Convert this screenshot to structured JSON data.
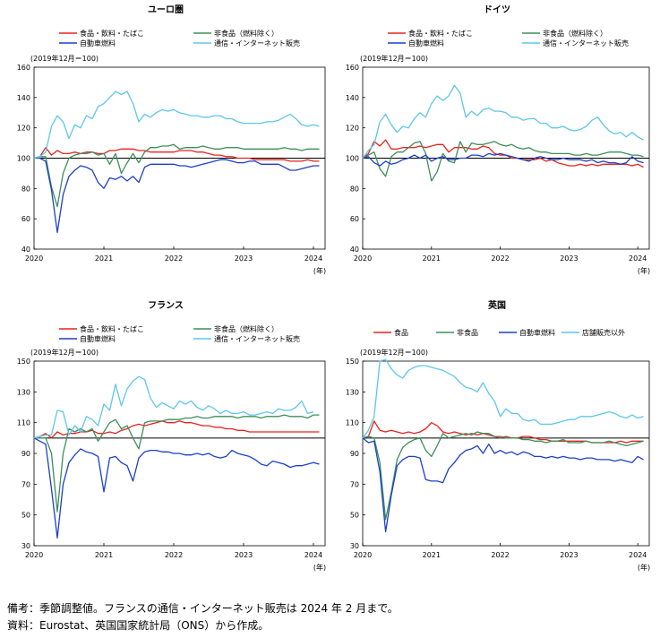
{
  "unit_note": "(2019年12月＝100)",
  "year_suffix": "(年)",
  "notes": {
    "line1": "備考：季節調整値。フランスの通信・インターネット販売は 2024 年 2 月まで。",
    "line2": "資料：Eurostat、英国国家統計局（ONS）から作成。"
  },
  "chart_data": [
    {
      "type": "line",
      "title": "ユーロ圏",
      "ylabel": "(2019年12月＝100)",
      "xlabel": "(年)",
      "ylim": [
        40,
        160
      ],
      "yticks": [
        40,
        60,
        80,
        100,
        120,
        140,
        160
      ],
      "xticks": [
        {
          "label": "2020",
          "x": 0
        },
        {
          "label": "2021",
          "x": 12
        },
        {
          "label": "2022",
          "x": 24
        },
        {
          "label": "2023",
          "x": 36
        },
        {
          "label": "2024",
          "x": 48
        }
      ],
      "xlim": [
        0,
        50
      ],
      "reference": 100,
      "legend_columns": 2,
      "series": [
        {
          "name": "食品・飲料・たばこ",
          "color": "#e8231e",
          "values": [
            100,
            101,
            107,
            102,
            105,
            103,
            103,
            104,
            103,
            104,
            104,
            103,
            103,
            105,
            105,
            106,
            106,
            106,
            105,
            105,
            104,
            104,
            104,
            104,
            104,
            105,
            105,
            105,
            104,
            104,
            103,
            102,
            102,
            101,
            101,
            100,
            100,
            100,
            99,
            99,
            99,
            99,
            99,
            99,
            98,
            98,
            98,
            99,
            98,
            98
          ]
        },
        {
          "name": "非食品（燃料除く）",
          "color": "#3d8f5a",
          "values": [
            100,
            101,
            101,
            81,
            68,
            90,
            100,
            102,
            103,
            103,
            104,
            102,
            103,
            96,
            103,
            90,
            97,
            103,
            97,
            104,
            107,
            107,
            108,
            108,
            109,
            106,
            107,
            107,
            107,
            108,
            107,
            106,
            106,
            107,
            107,
            107,
            106,
            106,
            106,
            106,
            106,
            106,
            106,
            107,
            106,
            106,
            105,
            106,
            106,
            106
          ]
        },
        {
          "name": "自動車燃料",
          "color": "#1d3fc9",
          "values": [
            100,
            100,
            98,
            79,
            51,
            76,
            88,
            92,
            95,
            94,
            92,
            84,
            80,
            87,
            86,
            88,
            85,
            88,
            84,
            94,
            96,
            96,
            96,
            96,
            96,
            95,
            95,
            94,
            95,
            96,
            97,
            98,
            99,
            99,
            98,
            97,
            97,
            98,
            98,
            96,
            96,
            96,
            96,
            94,
            92,
            92,
            93,
            94,
            95,
            95
          ]
        },
        {
          "name": "通信・インターネット販売",
          "color": "#5ec6ec",
          "values": [
            100,
            101,
            104,
            121,
            128,
            124,
            113,
            122,
            120,
            128,
            126,
            134,
            136,
            140,
            144,
            142,
            144,
            136,
            124,
            129,
            127,
            130,
            132,
            131,
            132,
            130,
            129,
            128,
            128,
            127,
            127,
            128,
            128,
            126,
            126,
            124,
            123,
            123,
            123,
            123,
            124,
            124,
            125,
            127,
            129,
            126,
            122,
            121,
            122,
            121
          ]
        }
      ]
    },
    {
      "type": "line",
      "title": "ドイツ",
      "ylabel": "(2019年12月＝100)",
      "xlabel": "(年)",
      "ylim": [
        40,
        160
      ],
      "yticks": [
        40,
        60,
        80,
        100,
        120,
        140,
        160
      ],
      "xticks": [
        {
          "label": "2020",
          "x": 0
        },
        {
          "label": "2021",
          "x": 12
        },
        {
          "label": "2022",
          "x": 24
        },
        {
          "label": "2023",
          "x": 36
        },
        {
          "label": "2024",
          "x": 48
        }
      ],
      "xlim": [
        0,
        50
      ],
      "reference": 100,
      "legend_columns": 2,
      "series": [
        {
          "name": "食品・飲料・たばこ",
          "color": "#e8231e",
          "values": [
            100,
            103,
            111,
            108,
            112,
            106,
            106,
            107,
            107,
            107,
            108,
            107,
            108,
            109,
            109,
            104,
            107,
            107,
            107,
            106,
            106,
            108,
            107,
            103,
            102,
            102,
            100,
            100,
            99,
            99,
            99,
            100,
            98,
            99,
            97,
            96,
            95,
            95,
            96,
            95,
            96,
            95,
            96,
            96,
            96,
            96,
            96,
            95,
            96,
            94
          ]
        },
        {
          "name": "非食品（燃料除く）",
          "color": "#3d8f5a",
          "values": [
            100,
            102,
            104,
            93,
            88,
            101,
            104,
            104,
            107,
            110,
            111,
            103,
            85,
            91,
            103,
            98,
            97,
            111,
            104,
            110,
            109,
            109,
            110,
            111,
            109,
            108,
            109,
            107,
            106,
            107,
            105,
            104,
            104,
            103,
            103,
            103,
            103,
            102,
            102,
            103,
            102,
            102,
            103,
            104,
            104,
            104,
            103,
            102,
            102,
            101
          ]
        },
        {
          "name": "自動車燃料",
          "color": "#1d3fc9",
          "values": [
            100,
            101,
            97,
            95,
            98,
            96,
            97,
            99,
            100,
            102,
            100,
            102,
            98,
            100,
            101,
            99,
            99,
            100,
            100,
            102,
            102,
            101,
            103,
            102,
            103,
            102,
            101,
            100,
            99,
            98,
            100,
            101,
            100,
            99,
            99,
            100,
            99,
            99,
            99,
            98,
            99,
            97,
            98,
            97,
            97,
            96,
            97,
            101,
            98,
            97
          ]
        },
        {
          "name": "通信・インターネット販売",
          "color": "#5ec6ec",
          "values": [
            100,
            105,
            109,
            124,
            129,
            122,
            117,
            121,
            120,
            126,
            130,
            127,
            136,
            141,
            138,
            141,
            148,
            143,
            127,
            131,
            128,
            132,
            133,
            131,
            131,
            130,
            127,
            127,
            125,
            126,
            126,
            123,
            123,
            120,
            120,
            121,
            119,
            118,
            119,
            121,
            125,
            127,
            122,
            118,
            116,
            117,
            114,
            117,
            114,
            112
          ]
        }
      ]
    },
    {
      "type": "line",
      "title": "フランス",
      "ylabel": "(2019年12月＝100)",
      "xlabel": "(年)",
      "ylim": [
        30,
        150
      ],
      "yticks": [
        30,
        50,
        70,
        90,
        110,
        130,
        150
      ],
      "xticks": [
        {
          "label": "2020",
          "x": 0
        },
        {
          "label": "2021",
          "x": 12
        },
        {
          "label": "2022",
          "x": 24
        },
        {
          "label": "2023",
          "x": 36
        },
        {
          "label": "2024",
          "x": 48
        }
      ],
      "xlim": [
        0,
        50
      ],
      "reference": 100,
      "legend_columns": 2,
      "series": [
        {
          "name": "食品・飲料・たばこ",
          "color": "#e8231e",
          "values": [
            100,
            101,
            103,
            100,
            104,
            102,
            103,
            103,
            104,
            104,
            105,
            103,
            103,
            104,
            103,
            105,
            106,
            108,
            109,
            108,
            109,
            110,
            111,
            110,
            110,
            111,
            110,
            110,
            109,
            108,
            108,
            107,
            107,
            106,
            106,
            105,
            105,
            104,
            104,
            104,
            104,
            104,
            104,
            104,
            104,
            104,
            104,
            104,
            104,
            104
          ]
        },
        {
          "name": "非食品（燃料除く）",
          "color": "#3d8f5a",
          "values": [
            100,
            100,
            100,
            90,
            52,
            90,
            106,
            104,
            106,
            104,
            106,
            98,
            104,
            110,
            112,
            106,
            108,
            100,
            93,
            110,
            111,
            111,
            111,
            112,
            112,
            112,
            113,
            113,
            114,
            113,
            113,
            114,
            114,
            114,
            114,
            113,
            114,
            114,
            114,
            113,
            114,
            114,
            114,
            115,
            114,
            114,
            114,
            113,
            115,
            115
          ]
        },
        {
          "name": "自動車燃料",
          "color": "#1d3fc9",
          "values": [
            100,
            98,
            96,
            67,
            35,
            70,
            84,
            89,
            93,
            91,
            90,
            88,
            65,
            87,
            88,
            84,
            82,
            72,
            87,
            91,
            92,
            92,
            91,
            91,
            90,
            90,
            89,
            89,
            90,
            89,
            90,
            88,
            87,
            88,
            92,
            90,
            89,
            88,
            86,
            83,
            82,
            85,
            84,
            83,
            81,
            82,
            82,
            83,
            84,
            83
          ]
        },
        {
          "name": "通信・インターネット販売",
          "color": "#5ec6ec",
          "values": [
            100,
            101,
            102,
            102,
            118,
            117,
            102,
            108,
            104,
            114,
            112,
            108,
            122,
            118,
            135,
            121,
            132,
            137,
            140,
            138,
            126,
            120,
            123,
            121,
            119,
            124,
            122,
            124,
            120,
            118,
            121,
            119,
            116,
            118,
            116,
            116,
            117,
            115,
            115,
            116,
            117,
            116,
            119,
            118,
            118,
            120,
            124,
            116,
            117
          ]
        }
      ]
    },
    {
      "type": "line",
      "title": "英国",
      "ylabel": "(2019年12月＝100)",
      "xlabel": "(年)",
      "ylim": [
        30,
        150
      ],
      "yticks": [
        30,
        50,
        70,
        90,
        110,
        130,
        150
      ],
      "xticks": [
        {
          "label": "2020",
          "x": 0
        },
        {
          "label": "2021",
          "x": 12
        },
        {
          "label": "2022",
          "x": 24
        },
        {
          "label": "2023",
          "x": 36
        },
        {
          "label": "2024",
          "x": 48
        }
      ],
      "xlim": [
        0,
        50
      ],
      "reference": 100,
      "legend_columns": 4,
      "series": [
        {
          "name": "食品",
          "color": "#e8231e",
          "values": [
            100,
            101,
            111,
            105,
            104,
            105,
            104,
            103,
            104,
            103,
            104,
            106,
            110,
            108,
            104,
            103,
            104,
            103,
            102,
            103,
            102,
            103,
            102,
            101,
            100,
            101,
            100,
            100,
            101,
            101,
            100,
            99,
            99,
            98,
            98,
            98,
            98,
            98,
            98,
            98,
            97,
            97,
            97,
            97,
            97,
            98,
            97,
            98,
            98,
            98
          ]
        },
        {
          "name": "非食品",
          "color": "#3d8f5a",
          "values": [
            100,
            101,
            100,
            84,
            47,
            65,
            86,
            94,
            97,
            99,
            100,
            92,
            88,
            95,
            103,
            100,
            101,
            102,
            103,
            102,
            104,
            103,
            103,
            101,
            101,
            100,
            100,
            100,
            99,
            99,
            98,
            98,
            97,
            98,
            98,
            99,
            97,
            97,
            97,
            98,
            97,
            97,
            97,
            98,
            97,
            96,
            95,
            96,
            97,
            98
          ]
        },
        {
          "name": "自動車燃料",
          "color": "#1d3fc9",
          "values": [
            100,
            97,
            98,
            78,
            39,
            63,
            82,
            86,
            88,
            88,
            87,
            73,
            72,
            72,
            71,
            80,
            84,
            89,
            92,
            93,
            95,
            90,
            96,
            90,
            92,
            90,
            91,
            89,
            91,
            90,
            88,
            88,
            87,
            88,
            87,
            88,
            87,
            87,
            86,
            87,
            87,
            86,
            86,
            86,
            85,
            86,
            85,
            84,
            88,
            86
          ]
        },
        {
          "name": "店舗販売以外",
          "color": "#5ec6ec",
          "values": [
            100,
            105,
            114,
            150,
            151,
            145,
            141,
            139,
            144,
            146,
            147,
            147,
            146,
            145,
            144,
            142,
            140,
            136,
            133,
            132,
            130,
            136,
            129,
            124,
            114,
            119,
            116,
            116,
            112,
            111,
            112,
            109,
            109,
            109,
            110,
            111,
            112,
            112,
            114,
            114,
            114,
            115,
            116,
            117,
            116,
            114,
            113,
            115,
            113,
            114
          ]
        }
      ]
    }
  ]
}
